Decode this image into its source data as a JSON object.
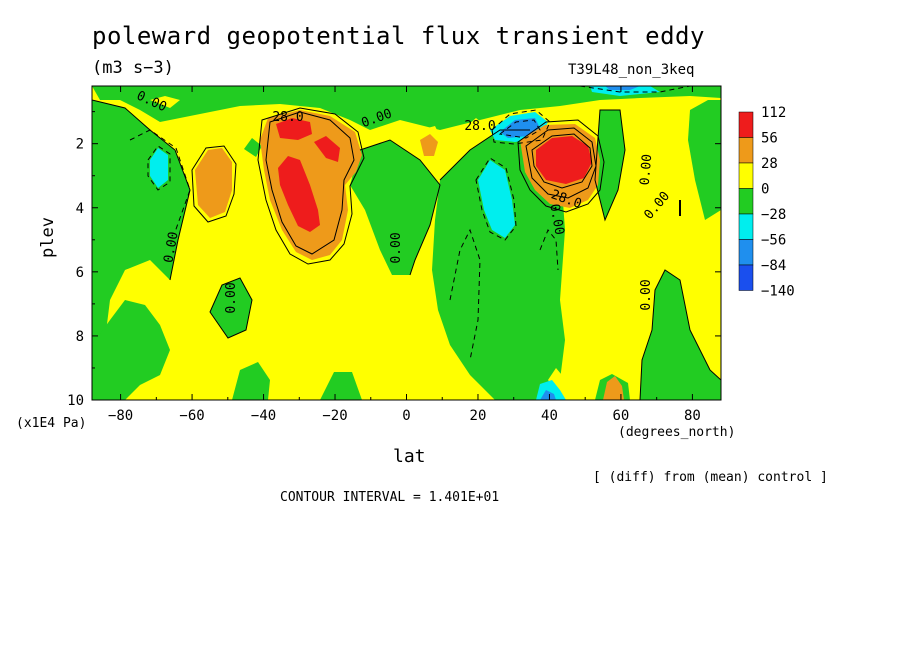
{
  "chart_data": {
    "type": "heatmap",
    "title": "poleward geopotential flux transient eddy",
    "subtitle": "(m3 s−3)",
    "run_label": "T39L48_non_3keq",
    "xlabel": "lat",
    "x_units": "(degrees_north)",
    "ylabel": "plev",
    "y_units": "(x1E4 Pa)",
    "x_ticks": [
      "−80",
      "−60",
      "−40",
      "−20",
      "0",
      "20",
      "40",
      "60",
      "80"
    ],
    "x_tick_values": [
      -80,
      -60,
      -40,
      -20,
      0,
      20,
      40,
      60,
      80
    ],
    "y_ticks": [
      "2",
      "4",
      "6",
      "8",
      "10"
    ],
    "y_tick_values": [
      2,
      4,
      6,
      8,
      10
    ],
    "xlim": [
      -88,
      88
    ],
    "ylim": [
      10,
      0.2
    ],
    "note": "[ (diff) from (mean) control ]",
    "contour_interval": "CONTOUR INTERVAL = 1.401E+01",
    "legend": {
      "labels": [
        "112",
        "56",
        "28",
        "0",
        "−28",
        "−56",
        "−84",
        "−140"
      ],
      "colors": [
        "#ee1c1c",
        "#ee9a1a",
        "#ffff00",
        "#22cc22",
        "#00eeee",
        "#1f8fee",
        "#1a4fee"
      ]
    },
    "contour_labels": [
      "28.0",
      "28.0",
      "0.00",
      "0.00",
      "0.00",
      "0.00",
      "0.00",
      "0.00",
      "0.00",
      "0.00",
      "0.00",
      "28.0"
    ],
    "colors": {
      "green": "#22cc22",
      "yellow": "#ffff00",
      "orange": "#ee9a1a",
      "red": "#ee1c1c",
      "cyan": "#00eeee",
      "blue": "#1f8fee"
    }
  }
}
